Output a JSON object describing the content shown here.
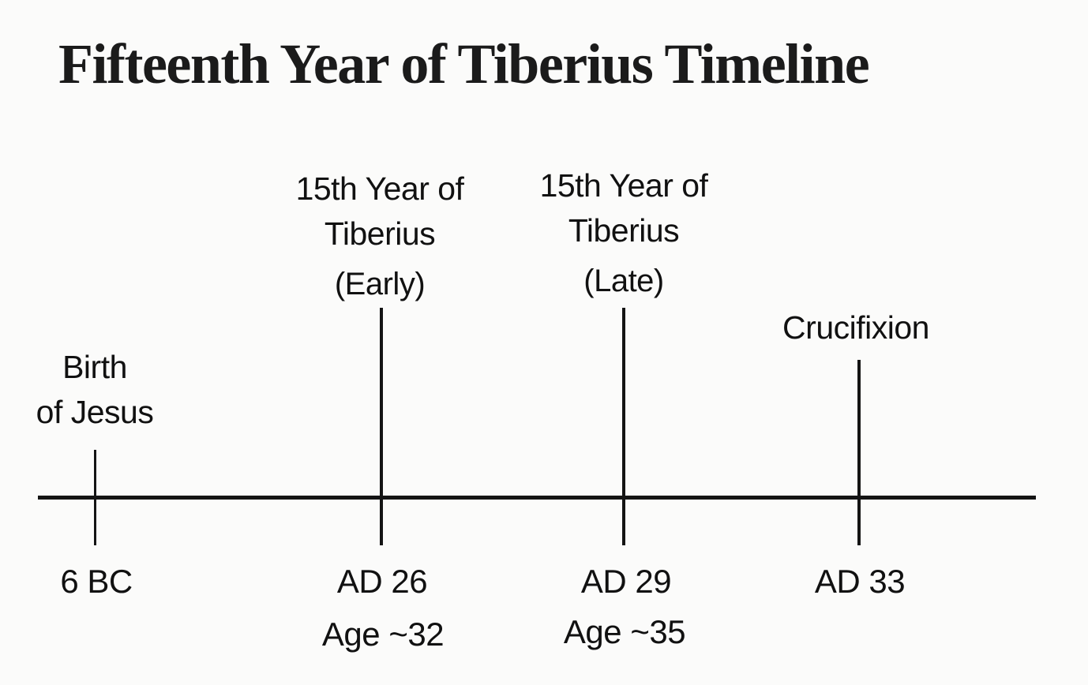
{
  "colors": {
    "background": "#fbfbfa",
    "ink": "#141414",
    "text": "#111111"
  },
  "title": "Fifteenth Year of Tiberius Timeline",
  "timeline": {
    "axis": {
      "orientation": "horizontal"
    },
    "events": [
      {
        "name": "birth-of-jesus",
        "label_lines": [
          "Birth",
          "of Jesus"
        ],
        "qualifier": "",
        "year": "6 BC",
        "age": ""
      },
      {
        "name": "15th-year-of-tiberius-early",
        "label_lines": [
          "15th Year of",
          "Tiberius"
        ],
        "qualifier": "(Early)",
        "year": "AD 26",
        "age": "Age ~32"
      },
      {
        "name": "15th-year-of-tiberius-late",
        "label_lines": [
          "15th Year of",
          "Tiberius"
        ],
        "qualifier": "(Late)",
        "year": "AD 29",
        "age": "Age ~35"
      },
      {
        "name": "crucifixion",
        "label_lines": [
          "Crucifixion"
        ],
        "qualifier": "",
        "year": "AD 33",
        "age": ""
      }
    ]
  }
}
